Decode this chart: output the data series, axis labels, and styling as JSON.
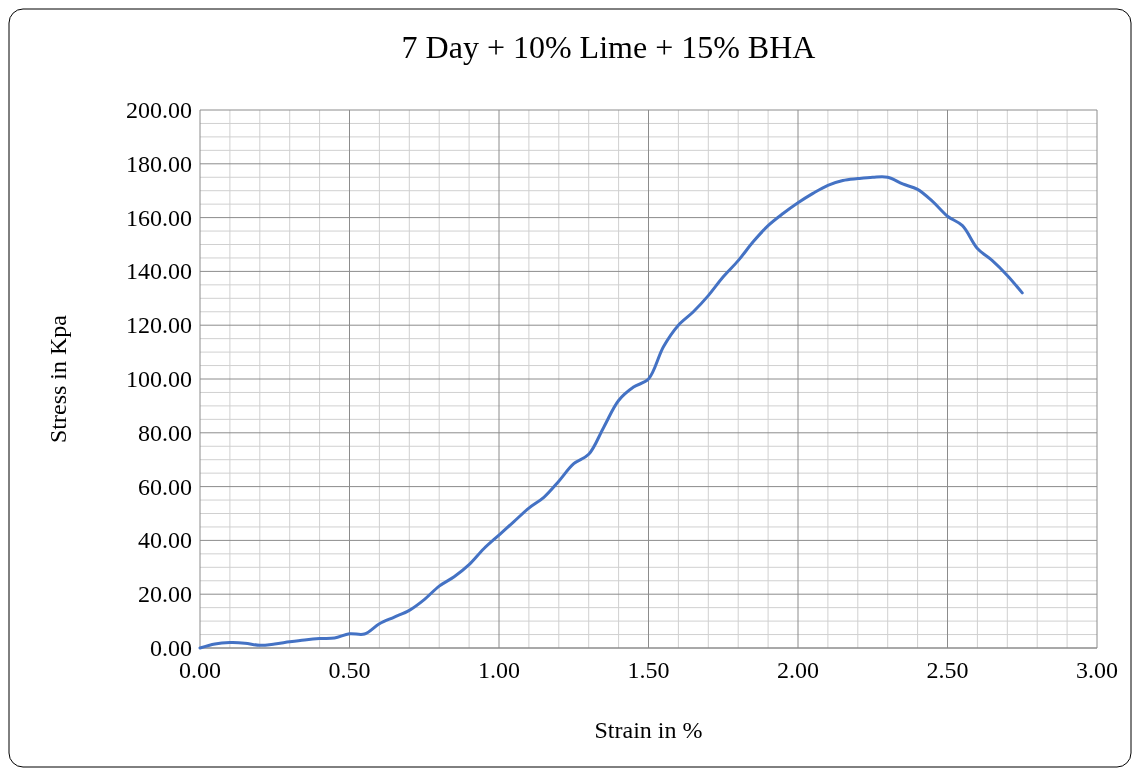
{
  "chart_data": {
    "type": "line",
    "title": "7 Day + 10% Lime + 15% BHA",
    "xlabel": "Strain in %",
    "ylabel": "Stress in Kpa",
    "x": [
      0,
      0.05,
      0.1,
      0.15,
      0.2,
      0.25,
      0.3,
      0.35,
      0.4,
      0.45,
      0.5,
      0.55,
      0.6,
      0.65,
      0.7,
      0.75,
      0.8,
      0.85,
      0.9,
      0.95,
      1.0,
      1.05,
      1.1,
      1.15,
      1.2,
      1.25,
      1.3,
      1.35,
      1.4,
      1.45,
      1.5,
      1.55,
      1.6,
      1.65,
      1.7,
      1.75,
      1.8,
      1.85,
      1.9,
      1.95,
      2.0,
      2.05,
      2.1,
      2.15,
      2.2,
      2.25,
      2.3,
      2.35,
      2.4,
      2.45,
      2.5,
      2.55,
      2.6,
      2.65,
      2.7,
      2.75
    ],
    "series": [
      {
        "color": "#4472c4",
        "values": [
          0,
          1.5,
          2,
          1.8,
          1,
          1.5,
          2.3,
          3,
          3.5,
          3.7,
          5.3,
          5.2,
          9,
          11.5,
          14,
          18,
          23,
          26.5,
          31,
          37,
          42,
          47,
          52,
          56,
          62,
          68.5,
          72,
          82,
          92,
          97,
          100,
          112,
          120,
          125,
          131,
          138,
          144,
          151,
          157,
          161.5,
          165.5,
          169,
          172,
          173.8,
          174.5,
          175,
          175,
          172.5,
          170.5,
          166,
          160.5,
          157,
          148.5,
          144,
          138.5,
          132
        ]
      }
    ],
    "xlim": [
      0,
      3
    ],
    "xticks": [
      {
        "value": 0,
        "label": "0.00"
      },
      {
        "value": 0.5,
        "label": "0.50"
      },
      {
        "value": 1,
        "label": "1.00"
      },
      {
        "value": 1.5,
        "label": "1.50"
      },
      {
        "value": 2,
        "label": "2.00"
      },
      {
        "value": 2.5,
        "label": "2.50"
      },
      {
        "value": 3,
        "label": "3.00"
      }
    ],
    "ylim": [
      0,
      200
    ],
    "yticks": [
      {
        "value": 0,
        "label": "0.00"
      },
      {
        "value": 20,
        "label": "20.00"
      },
      {
        "value": 40,
        "label": "40.00"
      },
      {
        "value": 60,
        "label": "60.00"
      },
      {
        "value": 80,
        "label": "80.00"
      },
      {
        "value": 100,
        "label": "100.00"
      },
      {
        "value": 120,
        "label": "120.00"
      },
      {
        "value": 140,
        "label": "140.00"
      },
      {
        "value": 160,
        "label": "160.00"
      },
      {
        "value": 180,
        "label": "180.00"
      },
      {
        "value": 200,
        "label": "200.00"
      }
    ],
    "grid": true,
    "marker": "none",
    "line_style": "solid"
  }
}
